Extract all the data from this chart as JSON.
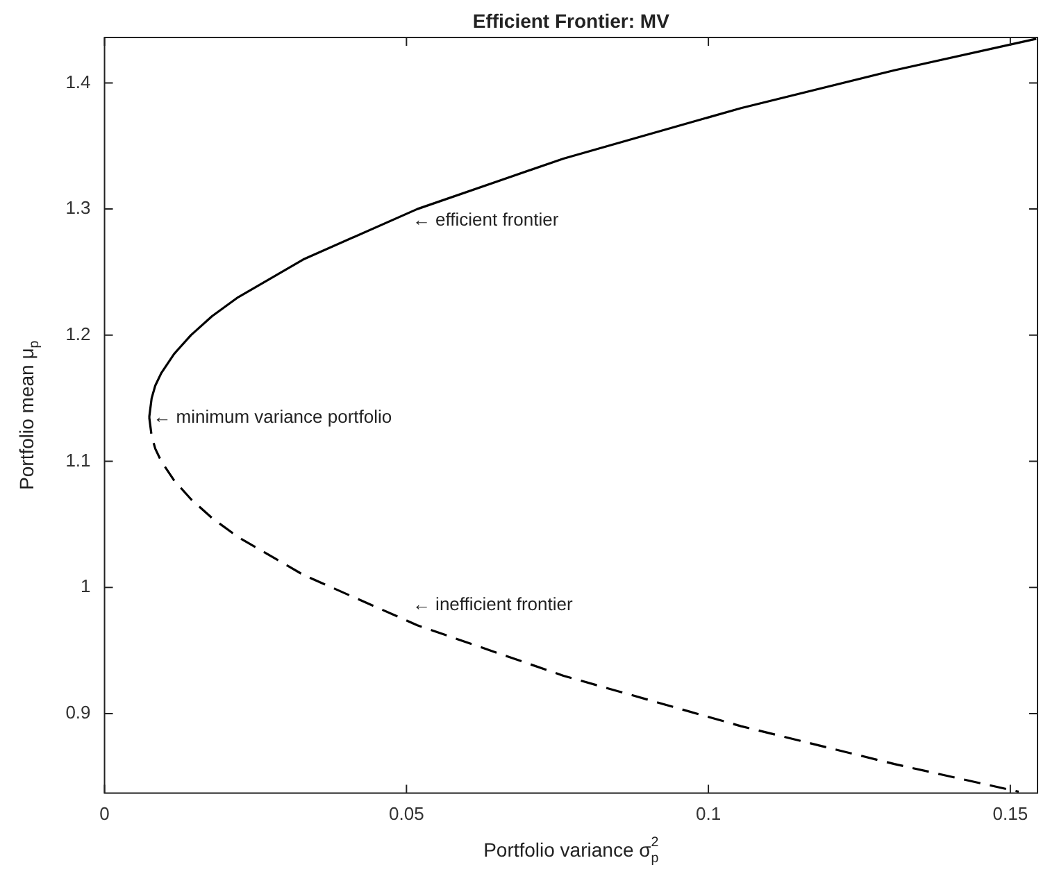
{
  "chart_data": {
    "type": "line",
    "title": "Efficient Frontier: MV",
    "xlabel": "Portfolio variance σ$_{p}$$^{2}$",
    "ylabel": "Portfolio mean μ$_{p}$",
    "series": [
      {
        "color": "#000000",
        "line_style": "solid",
        "x": [
          0.0074,
          0.0078,
          0.0084,
          0.0094,
          0.0115,
          0.0143,
          0.0178,
          0.0221,
          0.0329,
          0.0518,
          0.076,
          0.1054,
          0.1308,
          0.1543
        ],
        "values": [
          1.135,
          1.15,
          1.16,
          1.17,
          1.185,
          1.2,
          1.215,
          1.23,
          1.26,
          1.3,
          1.34,
          1.38,
          1.41,
          1.435
        ]
      },
      {
        "color": "#000000",
        "line_style": "dashed",
        "x": [
          0.0074,
          0.0078,
          0.0084,
          0.0094,
          0.0115,
          0.0143,
          0.0178,
          0.0221,
          0.0329,
          0.0518,
          0.076,
          0.1054,
          0.1308,
          0.1514
        ],
        "values": [
          1.135,
          1.12,
          1.11,
          1.1,
          1.085,
          1.07,
          1.055,
          1.04,
          1.01,
          0.97,
          0.93,
          0.89,
          0.86,
          0.838
        ]
      }
    ],
    "annotations": [
      "← efficient frontier",
      "← minimum variance portfolio",
      "← inefficient frontier"
    ],
    "xlim": [
      0,
      0.1545
    ],
    "ylim": [
      0.837,
      1.436
    ],
    "xticks": [
      0,
      0.05,
      0.1,
      0.15
    ],
    "yticks": [
      0.9,
      1,
      1.1,
      1.2,
      1.3,
      1.4
    ],
    "grid": false,
    "legend": false,
    "marker": "none"
  }
}
